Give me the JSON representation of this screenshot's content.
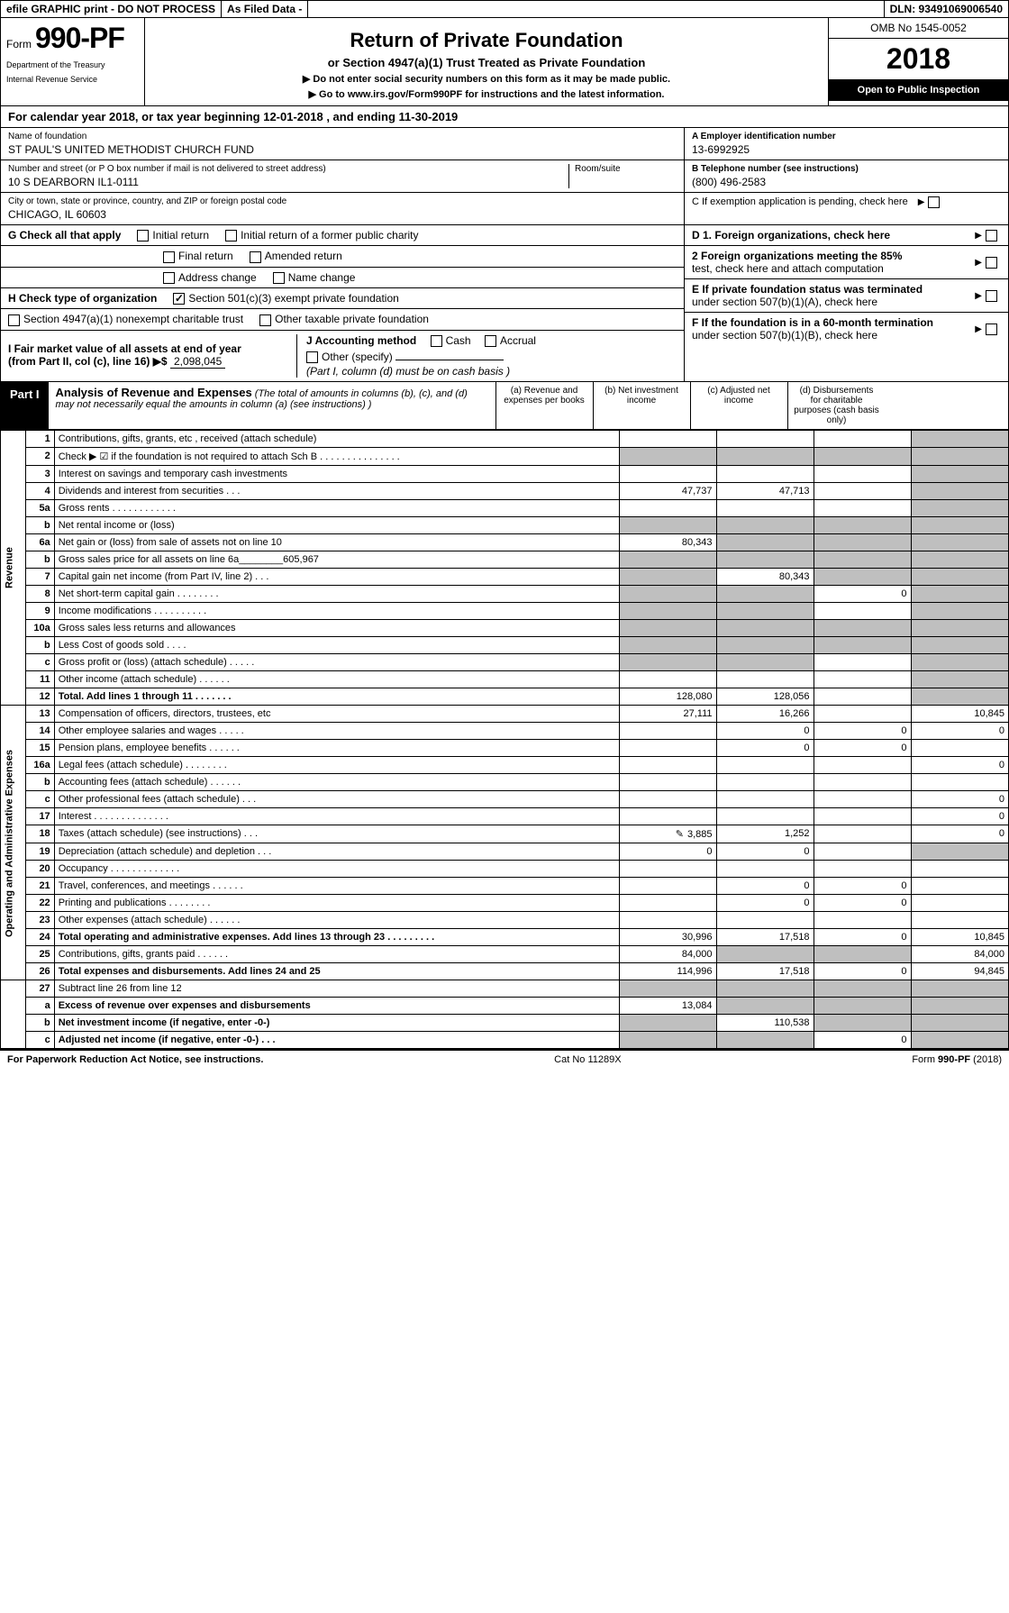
{
  "topbar": {
    "efile": "efile GRAPHIC print - DO NOT PROCESS",
    "asfiled": "As Filed Data -",
    "dln": "DLN: 93491069006540"
  },
  "header": {
    "form_word": "Form",
    "form_num": "990-PF",
    "dept1": "Department of the Treasury",
    "dept2": "Internal Revenue Service",
    "title": "Return of Private Foundation",
    "sub1": "or Section 4947(a)(1) Trust Treated as Private Foundation",
    "sub2": "▶ Do not enter social security numbers on this form as it may be made public.",
    "sub3_prefix": "▶ Go to ",
    "sub3_link": "www.irs.gov/Form990PF",
    "sub3_suffix": " for instructions and the latest information.",
    "omb": "OMB No 1545-0052",
    "year": "2018",
    "openpub": "Open to Public Inspection"
  },
  "cal": "For calendar year 2018, or tax year beginning 12-01-2018                    , and ending 11-30-2019",
  "identity": {
    "name_lbl": "Name of foundation",
    "name_val": "ST PAUL'S UNITED METHODIST CHURCH FUND",
    "addr_lbl": "Number and street (or P O  box number if mail is not delivered to street address)",
    "room_lbl": "Room/suite",
    "addr_val": "10 S DEARBORN IL1-0111",
    "city_lbl": "City or town, state or province, country, and ZIP or foreign postal code",
    "city_val": "CHICAGO, IL  60603",
    "a_lbl": "A Employer identification number",
    "a_val": "13-6992925",
    "b_lbl": "B Telephone number (see instructions)",
    "b_val": "(800) 496-2583",
    "c_lbl": "C If exemption application is pending, check here"
  },
  "sec_g": {
    "g_lbl": "G Check all that apply",
    "g_items": [
      "Initial return",
      "Initial return of a former public charity",
      "Final return",
      "Amended return",
      "Address change",
      "Name change"
    ],
    "h_lbl": "H Check type of organization",
    "h1": "Section 501(c)(3) exempt private foundation",
    "h2": "Section 4947(a)(1) nonexempt charitable trust",
    "h3": "Other taxable private foundation",
    "i_lbl": "I Fair market value of all assets at end of year (from Part II, col (c), line 16) ▶$ ",
    "i_val": "2,098,045",
    "j_lbl": "J Accounting method",
    "j_cash": "Cash",
    "j_accrual": "Accrual",
    "j_other": "Other (specify)",
    "j_note": "(Part I, column (d) must be on cash basis )",
    "d1": "D 1. Foreign organizations, check here",
    "d2a": "2 Foreign organizations meeting the 85%",
    "d2b": "test, check here and attach computation",
    "e1": "E If private foundation status was terminated",
    "e2": "under section 507(b)(1)(A), check here",
    "f1": "F If the foundation is in a 60-month termination",
    "f2": "under section 507(b)(1)(B), check here"
  },
  "part1": {
    "lbl": "Part I",
    "title": "Analysis of Revenue and Expenses",
    "desc": " (The total of amounts in columns (b), (c), and (d) may not necessarily equal the amounts in column (a) (see instructions) )",
    "cols": [
      "(a)   Revenue and expenses per books",
      "(b)   Net investment income",
      "(c)   Adjusted net income",
      "(d)   Disbursements for charitable purposes (cash basis only)"
    ]
  },
  "side_rev": "Revenue",
  "side_exp": "Operating and Administrative Expenses",
  "rows": [
    {
      "n": "1",
      "d": "",
      "a": "",
      "b": "",
      "c": "",
      "dgr": true
    },
    {
      "n": "2",
      "d": "",
      "a": "",
      "b": "",
      "c": "",
      "allgr": true
    },
    {
      "n": "3",
      "d": "",
      "a": "",
      "b": "",
      "c": "",
      "dgr": true
    },
    {
      "n": "4",
      "d": "",
      "a": "47,737",
      "b": "47,713",
      "c": "",
      "dgr": true
    },
    {
      "n": "5a",
      "d": "",
      "a": "",
      "b": "",
      "c": "",
      "dgr": true
    },
    {
      "n": "b",
      "d": "",
      "a": "",
      "b": "",
      "c": "",
      "allgr": true
    },
    {
      "n": "6a",
      "d": "",
      "a": "80,343",
      "b": "",
      "c": "",
      "bgr": true,
      "cgr": true,
      "dgr": true
    },
    {
      "n": "b",
      "d": "",
      "a": "",
      "b": "",
      "c": "",
      "allgr": true
    },
    {
      "n": "7",
      "d": "",
      "a": "",
      "b": "80,343",
      "c": "",
      "agr": true,
      "cgr": true,
      "dgr": true
    },
    {
      "n": "8",
      "d": "",
      "a": "",
      "b": "",
      "c": "0",
      "agr": true,
      "bgr": true,
      "dgr": true
    },
    {
      "n": "9",
      "d": "",
      "a": "",
      "b": "",
      "c": "",
      "agr": true,
      "bgr": true,
      "dgr": true
    },
    {
      "n": "10a",
      "d": "",
      "a": "",
      "b": "",
      "c": "",
      "allgr": true
    },
    {
      "n": "b",
      "d": "",
      "a": "",
      "b": "",
      "c": "",
      "allgr": true
    },
    {
      "n": "c",
      "d": "",
      "a": "",
      "b": "",
      "c": "",
      "agr": true,
      "bgr": true,
      "dgr": true
    },
    {
      "n": "11",
      "d": "",
      "a": "",
      "b": "",
      "c": "",
      "dgr": true
    },
    {
      "n": "12",
      "d": "",
      "a": "128,080",
      "b": "128,056",
      "c": "",
      "bold": true,
      "dgr": true
    },
    {
      "n": "13",
      "d": "10,845",
      "a": "27,111",
      "b": "16,266",
      "c": ""
    },
    {
      "n": "14",
      "d": "0",
      "a": "",
      "b": "0",
      "c": "0"
    },
    {
      "n": "15",
      "d": "",
      "a": "",
      "b": "0",
      "c": "0"
    },
    {
      "n": "16a",
      "d": "0",
      "a": "",
      "b": "",
      "c": ""
    },
    {
      "n": "b",
      "d": "",
      "a": "",
      "b": "",
      "c": ""
    },
    {
      "n": "c",
      "d": "0",
      "a": "",
      "b": "",
      "c": ""
    },
    {
      "n": "17",
      "d": "0",
      "a": "",
      "b": "",
      "c": ""
    },
    {
      "n": "18",
      "d": "0",
      "a": "3,885",
      "b": "1,252",
      "c": "",
      "icon": true
    },
    {
      "n": "19",
      "d": "",
      "a": "0",
      "b": "0",
      "c": "",
      "dgr": true
    },
    {
      "n": "20",
      "d": "",
      "a": "",
      "b": "",
      "c": ""
    },
    {
      "n": "21",
      "d": "",
      "a": "",
      "b": "0",
      "c": "0"
    },
    {
      "n": "22",
      "d": "",
      "a": "",
      "b": "0",
      "c": "0"
    },
    {
      "n": "23",
      "d": "",
      "a": "",
      "b": "",
      "c": ""
    },
    {
      "n": "24",
      "d": "10,845",
      "a": "30,996",
      "b": "17,518",
      "c": "0",
      "bold": true
    },
    {
      "n": "25",
      "d": "84,000",
      "a": "84,000",
      "b": "",
      "c": "",
      "bgr": true,
      "cgr": true
    },
    {
      "n": "26",
      "d": "94,845",
      "a": "114,996",
      "b": "17,518",
      "c": "0",
      "bold": true
    },
    {
      "n": "27",
      "d": "",
      "a": "",
      "b": "",
      "c": "",
      "allgr": true
    },
    {
      "n": "a",
      "d": "",
      "a": "13,084",
      "b": "",
      "c": "",
      "bold": true,
      "bgr": true,
      "cgr": true,
      "dgr": true
    },
    {
      "n": "b",
      "d": "",
      "a": "",
      "b": "110,538",
      "c": "",
      "bold": true,
      "agr": true,
      "cgr": true,
      "dgr": true
    },
    {
      "n": "c",
      "d": "",
      "a": "",
      "b": "",
      "c": "0",
      "bold": true,
      "agr": true,
      "bgr": true,
      "dgr": true
    }
  ],
  "footer": {
    "left": "For Paperwork Reduction Act Notice, see instructions.",
    "center": "Cat No 11289X",
    "right": "Form 990-PF (2018)"
  }
}
